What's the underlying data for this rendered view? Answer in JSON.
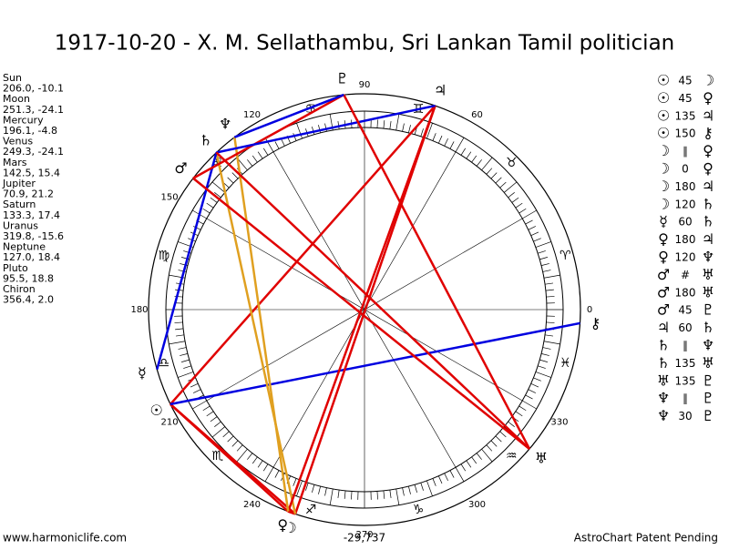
{
  "title": "1917-10-20 - X. M. Sellathambu, Sri Lankan Tamil politician",
  "planets": [
    {
      "name": "Sun",
      "glyph": "☉",
      "position": "206.0, -10.1"
    },
    {
      "name": "Moon",
      "glyph": "☽",
      "position": "251.3, -24.1"
    },
    {
      "name": "Mercury",
      "glyph": "☿",
      "position": "196.1, -4.8"
    },
    {
      "name": "Venus",
      "glyph": "♀",
      "position": "249.3, -24.1"
    },
    {
      "name": "Mars",
      "glyph": "♂",
      "position": "142.5, 15.4"
    },
    {
      "name": "Jupiter",
      "glyph": "♃",
      "position": "70.9, 21.2"
    },
    {
      "name": "Saturn",
      "glyph": "♄",
      "position": "133.3, 17.4"
    },
    {
      "name": "Uranus",
      "glyph": "♅",
      "position": "319.8, -15.6"
    },
    {
      "name": "Neptune",
      "glyph": "♆",
      "position": "127.0, 18.4"
    },
    {
      "name": "Pluto",
      "glyph": "♇",
      "position": "95.5, 18.8"
    },
    {
      "name": "Chiron",
      "glyph": "⚷",
      "position": "356.4, 2.0"
    }
  ],
  "signs": [
    "♈",
    "♉",
    "♊",
    "♋",
    "♌",
    "♍",
    "♎",
    "♏",
    "♐",
    "♑",
    "♒",
    "♓"
  ],
  "degree_labels": [
    0,
    60,
    90,
    120,
    150,
    180,
    210,
    240,
    270,
    300,
    330
  ],
  "aspects": [
    {
      "a": "☉",
      "aspect": "45",
      "b": "☽",
      "color": "#e00000"
    },
    {
      "a": "☉",
      "aspect": "45",
      "b": "♀",
      "color": "#e00000"
    },
    {
      "a": "☉",
      "aspect": "135",
      "b": "♃",
      "color": "#e00000"
    },
    {
      "a": "☉",
      "aspect": "150",
      "b": "⚷",
      "color": "#0000e0"
    },
    {
      "a": "☽",
      "aspect": "∥",
      "b": "♀"
    },
    {
      "a": "☽",
      "aspect": "0",
      "b": "♀",
      "color": "#e00000"
    },
    {
      "a": "☽",
      "aspect": "180",
      "b": "♃",
      "color": "#e00000"
    },
    {
      "a": "☽",
      "aspect": "120",
      "b": "♄",
      "color": "#e0a020"
    },
    {
      "a": "☿",
      "aspect": "60",
      "b": "♄",
      "color": "#0000e0"
    },
    {
      "a": "♀",
      "aspect": "180",
      "b": "♃",
      "color": "#e00000"
    },
    {
      "a": "♀",
      "aspect": "120",
      "b": "♆",
      "color": "#e0a020"
    },
    {
      "a": "♂",
      "aspect": "#",
      "b": "♅"
    },
    {
      "a": "♂",
      "aspect": "180",
      "b": "♅",
      "color": "#e00000"
    },
    {
      "a": "♂",
      "aspect": "45",
      "b": "♇",
      "color": "#e00000"
    },
    {
      "a": "♃",
      "aspect": "60",
      "b": "♄",
      "color": "#0000e0"
    },
    {
      "a": "♄",
      "aspect": "∥",
      "b": "♆"
    },
    {
      "a": "♄",
      "aspect": "135",
      "b": "♅",
      "color": "#e00000"
    },
    {
      "a": "♅",
      "aspect": "135",
      "b": "♇",
      "color": "#e00000"
    },
    {
      "a": "♆",
      "aspect": "∥",
      "b": "♇"
    },
    {
      "a": "♆",
      "aspect": "30",
      "b": "♇",
      "color": "#0000e0"
    }
  ],
  "footer": {
    "left": "www.harmoniclife.com",
    "center": "-29,737",
    "right": "AstroChart Patent Pending"
  }
}
